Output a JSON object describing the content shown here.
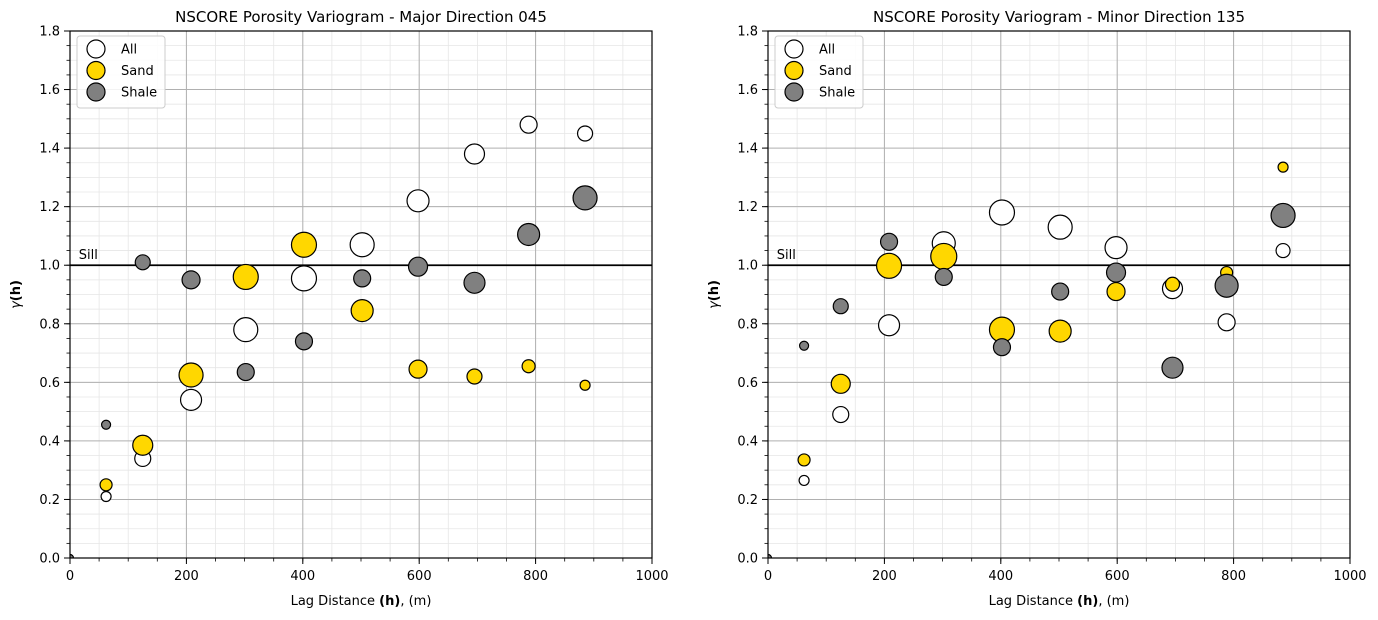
{
  "chart_data": [
    {
      "type": "scatter",
      "title": "NSCORE Porosity Variogram - Major Direction 045",
      "xlabel_prefix": "Lag Distance ",
      "xlabel_bold": "(h)",
      "xlabel_suffix": ", (m)",
      "ylabel_main": "γ",
      "ylabel_bold": "(h)",
      "xlim": [
        0,
        1000
      ],
      "ylim": [
        0,
        1.8
      ],
      "x_ticks": [
        0,
        200,
        400,
        600,
        800,
        1000
      ],
      "y_ticks": [
        0.0,
        0.2,
        0.4,
        0.6,
        0.8,
        1.0,
        1.2,
        1.4,
        1.6,
        1.8
      ],
      "y_tick_labels": [
        "0.0",
        "0.2",
        "0.4",
        "0.6",
        "0.8",
        "1.0",
        "1.2",
        "1.4",
        "1.6",
        "1.8"
      ],
      "grid": true,
      "legend_position": "top-left",
      "sill": 1.0,
      "sill_label": "Sill",
      "series": [
        {
          "name": "All",
          "color": "#ffffff",
          "points": [
            {
              "x": 62,
              "y": 0.21,
              "r": 5
            },
            {
              "x": 125,
              "y": 0.34,
              "r": 8
            },
            {
              "x": 208,
              "y": 0.54,
              "r": 10.5
            },
            {
              "x": 302,
              "y": 0.78,
              "r": 12
            },
            {
              "x": 402,
              "y": 0.955,
              "r": 12.5
            },
            {
              "x": 502,
              "y": 1.07,
              "r": 12
            },
            {
              "x": 598,
              "y": 1.22,
              "r": 11
            },
            {
              "x": 695,
              "y": 1.38,
              "r": 10
            },
            {
              "x": 788,
              "y": 1.48,
              "r": 8.5
            },
            {
              "x": 885,
              "y": 1.45,
              "r": 7.5
            }
          ]
        },
        {
          "name": "Sand",
          "color": "#ffd700",
          "points": [
            {
              "x": 62,
              "y": 0.25,
              "r": 6
            },
            {
              "x": 125,
              "y": 0.385,
              "r": 10
            },
            {
              "x": 208,
              "y": 0.625,
              "r": 12
            },
            {
              "x": 302,
              "y": 0.96,
              "r": 12.5
            },
            {
              "x": 402,
              "y": 1.07,
              "r": 12.5
            },
            {
              "x": 502,
              "y": 0.845,
              "r": 11
            },
            {
              "x": 598,
              "y": 0.645,
              "r": 9
            },
            {
              "x": 695,
              "y": 0.62,
              "r": 7.5
            },
            {
              "x": 788,
              "y": 0.655,
              "r": 6.5
            },
            {
              "x": 885,
              "y": 0.59,
              "r": 5
            }
          ]
        },
        {
          "name": "Shale",
          "color": "#808080",
          "points": [
            {
              "x": 0,
              "y": 0.0,
              "r": 3.5
            },
            {
              "x": 62,
              "y": 0.455,
              "r": 4.5
            },
            {
              "x": 125,
              "y": 1.01,
              "r": 7.5
            },
            {
              "x": 208,
              "y": 0.95,
              "r": 9
            },
            {
              "x": 302,
              "y": 0.635,
              "r": 8.5
            },
            {
              "x": 402,
              "y": 0.74,
              "r": 8.5
            },
            {
              "x": 502,
              "y": 0.955,
              "r": 8.5
            },
            {
              "x": 598,
              "y": 0.995,
              "r": 9.5
            },
            {
              "x": 695,
              "y": 0.94,
              "r": 10.5
            },
            {
              "x": 788,
              "y": 1.105,
              "r": 11
            },
            {
              "x": 885,
              "y": 1.23,
              "r": 12
            }
          ]
        }
      ]
    },
    {
      "type": "scatter",
      "title": "NSCORE Porosity Variogram - Minor Direction 135",
      "xlabel_prefix": "Lag Distance ",
      "xlabel_bold": "(h)",
      "xlabel_suffix": ", (m)",
      "ylabel_main": "γ",
      "ylabel_bold": "(h)",
      "xlim": [
        0,
        1000
      ],
      "ylim": [
        0,
        1.8
      ],
      "x_ticks": [
        0,
        200,
        400,
        600,
        800,
        1000
      ],
      "y_ticks": [
        0.0,
        0.2,
        0.4,
        0.6,
        0.8,
        1.0,
        1.2,
        1.4,
        1.6,
        1.8
      ],
      "y_tick_labels": [
        "0.0",
        "0.2",
        "0.4",
        "0.6",
        "0.8",
        "1.0",
        "1.2",
        "1.4",
        "1.6",
        "1.8"
      ],
      "grid": true,
      "legend_position": "top-left",
      "sill": 1.0,
      "sill_label": "Sill",
      "series": [
        {
          "name": "All",
          "color": "#ffffff",
          "points": [
            {
              "x": 62,
              "y": 0.265,
              "r": 5
            },
            {
              "x": 125,
              "y": 0.49,
              "r": 8
            },
            {
              "x": 208,
              "y": 0.795,
              "r": 10.5
            },
            {
              "x": 302,
              "y": 1.075,
              "r": 11.5
            },
            {
              "x": 402,
              "y": 1.18,
              "r": 12.5
            },
            {
              "x": 502,
              "y": 1.13,
              "r": 12
            },
            {
              "x": 598,
              "y": 1.06,
              "r": 11
            },
            {
              "x": 695,
              "y": 0.92,
              "r": 10
            },
            {
              "x": 788,
              "y": 0.805,
              "r": 8.5
            },
            {
              "x": 885,
              "y": 1.05,
              "r": 7
            }
          ]
        },
        {
          "name": "Sand",
          "color": "#ffd700",
          "points": [
            {
              "x": 62,
              "y": 0.335,
              "r": 6
            },
            {
              "x": 125,
              "y": 0.595,
              "r": 9.5
            },
            {
              "x": 208,
              "y": 0.998,
              "r": 12.5
            },
            {
              "x": 302,
              "y": 1.03,
              "r": 13
            },
            {
              "x": 402,
              "y": 0.78,
              "r": 12.5
            },
            {
              "x": 502,
              "y": 0.775,
              "r": 11
            },
            {
              "x": 598,
              "y": 0.91,
              "r": 9
            },
            {
              "x": 695,
              "y": 0.935,
              "r": 7
            },
            {
              "x": 788,
              "y": 0.975,
              "r": 6
            },
            {
              "x": 885,
              "y": 1.335,
              "r": 5
            }
          ]
        },
        {
          "name": "Shale",
          "color": "#808080",
          "points": [
            {
              "x": 0,
              "y": 0.0,
              "r": 3.5
            },
            {
              "x": 62,
              "y": 0.725,
              "r": 4.5
            },
            {
              "x": 125,
              "y": 0.86,
              "r": 7.5
            },
            {
              "x": 208,
              "y": 1.08,
              "r": 8.5
            },
            {
              "x": 302,
              "y": 0.96,
              "r": 8.5
            },
            {
              "x": 402,
              "y": 0.72,
              "r": 8.5
            },
            {
              "x": 502,
              "y": 0.91,
              "r": 8.5
            },
            {
              "x": 598,
              "y": 0.975,
              "r": 9.5
            },
            {
              "x": 695,
              "y": 0.65,
              "r": 10.5
            },
            {
              "x": 788,
              "y": 0.93,
              "r": 11.5
            },
            {
              "x": 885,
              "y": 1.17,
              "r": 12
            }
          ]
        }
      ]
    }
  ]
}
